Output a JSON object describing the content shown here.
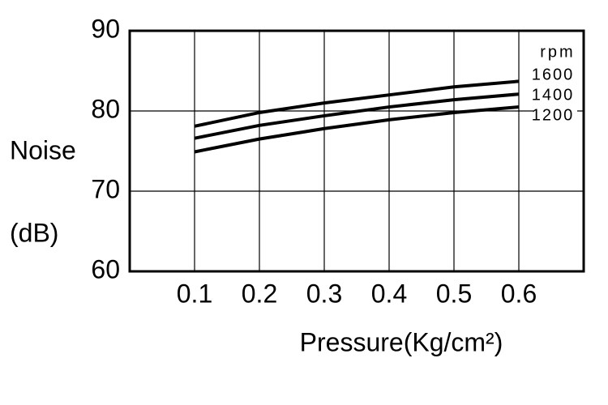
{
  "chart_data": {
    "type": "line",
    "y_label": [
      "Noise",
      "(dB)"
    ],
    "x_label": "Pressure(Kg/cm²)",
    "legend_title": "rpm",
    "x": [
      0.1,
      0.2,
      0.3,
      0.4,
      0.5,
      0.6
    ],
    "series": [
      {
        "name": "1600",
        "color": "#000000",
        "values": [
          78.1,
          79.8,
          81.0,
          82.0,
          83.0,
          83.7
        ]
      },
      {
        "name": "1400",
        "color": "#000000",
        "values": [
          76.6,
          78.2,
          79.4,
          80.5,
          81.4,
          82.1
        ]
      },
      {
        "name": "1200",
        "color": "#000000",
        "values": [
          74.9,
          76.5,
          77.8,
          78.9,
          79.8,
          80.5
        ]
      }
    ],
    "xlim": [
      0,
      0.7
    ],
    "xticks": [
      0.1,
      0.2,
      0.3,
      0.4,
      0.5,
      0.6
    ],
    "ylim": [
      60,
      90
    ],
    "yticks": [
      60,
      70,
      80,
      90
    ],
    "grid": true
  }
}
